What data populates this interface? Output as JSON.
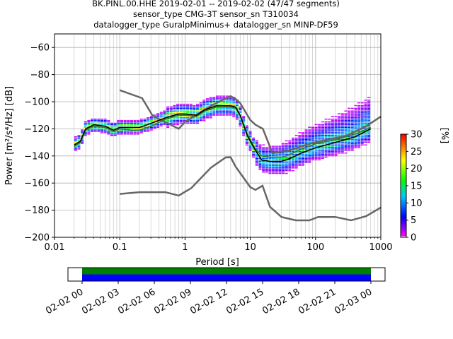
{
  "titles": {
    "line1": "BK.PINL.00.HHE   2019-02-01 -- 2019-02-02  (47/47 segments)",
    "line2": "sensor_type CMG-3T sensor_sn T310034",
    "line3": "datalogger_type GuralpMinimus+ datalogger_sn MINP-DF59"
  },
  "chart_data": [
    {
      "type": "heatmap",
      "xlabel": "Period [s]",
      "ylabel": "Power [m²/s⁴/Hz] [dB]",
      "x_scale": "log",
      "xlim": [
        0.01,
        1000
      ],
      "ylim": [
        -200,
        -50
      ],
      "x_ticks": [
        0.01,
        0.1,
        1,
        10,
        100,
        1000
      ],
      "x_tick_labels": [
        "0.01",
        "0.1",
        "1",
        "10",
        "100",
        "1000"
      ],
      "y_ticks": [
        -200,
        -180,
        -160,
        -140,
        -120,
        -100,
        -80,
        -60
      ],
      "y_tick_labels": [
        "−200",
        "−180",
        "−160",
        "−140",
        "−120",
        "−100",
        "−80",
        "−60"
      ],
      "grid": true,
      "colorbar": {
        "label": "[%]",
        "range": [
          0,
          30
        ],
        "ticks": [
          0,
          5,
          10,
          15,
          20,
          25,
          30
        ],
        "tick_labels": [
          "0",
          "5",
          "10",
          "15",
          "20",
          "25",
          "30"
        ]
      },
      "nhnm": [
        [
          0.1,
          -91.5
        ],
        [
          0.22,
          -97.4
        ],
        [
          0.32,
          -110.5
        ],
        [
          0.8,
          -120
        ],
        [
          1,
          -115
        ],
        [
          2.5,
          -103
        ],
        [
          4.5,
          -97
        ],
        [
          5,
          -96
        ],
        [
          6,
          -98
        ],
        [
          7,
          -101
        ],
        [
          10,
          -113.5
        ],
        [
          12,
          -117
        ],
        [
          15.6,
          -120
        ],
        [
          21.9,
          -138
        ],
        [
          40,
          -136
        ],
        [
          80,
          -131
        ],
        [
          150,
          -128
        ],
        [
          300,
          -125
        ],
        [
          600,
          -118
        ],
        [
          1000,
          -111
        ]
      ],
      "nlnm": [
        [
          0.1,
          -168
        ],
        [
          0.2,
          -166.7
        ],
        [
          0.5,
          -166.7
        ],
        [
          0.8,
          -169.2
        ],
        [
          1.25,
          -163.7
        ],
        [
          2.5,
          -148.6
        ],
        [
          4.2,
          -141.1
        ],
        [
          5,
          -141
        ],
        [
          6,
          -148
        ],
        [
          10,
          -163
        ],
        [
          12,
          -165
        ],
        [
          15.4,
          -162
        ],
        [
          20,
          -177.5
        ],
        [
          30,
          -185
        ],
        [
          50,
          -187.5
        ],
        [
          80,
          -187.5
        ],
        [
          110,
          -185
        ],
        [
          200,
          -185
        ],
        [
          350,
          -187.5
        ],
        [
          600,
          -184.4
        ],
        [
          1000,
          -178
        ]
      ],
      "mode": [
        [
          0.02,
          -132
        ],
        [
          0.025,
          -129
        ],
        [
          0.03,
          -120
        ],
        [
          0.04,
          -117
        ],
        [
          0.06,
          -118
        ],
        [
          0.08,
          -121
        ],
        [
          0.1,
          -119
        ],
        [
          0.15,
          -119
        ],
        [
          0.2,
          -119
        ],
        [
          0.3,
          -116
        ],
        [
          0.5,
          -112
        ],
        [
          0.8,
          -109
        ],
        [
          1,
          -109
        ],
        [
          1.5,
          -110
        ],
        [
          2,
          -106
        ],
        [
          3,
          -103
        ],
        [
          4,
          -103
        ],
        [
          5,
          -103
        ],
        [
          6,
          -104
        ],
        [
          7,
          -110
        ],
        [
          9,
          -125
        ],
        [
          12,
          -136
        ],
        [
          15,
          -143
        ],
        [
          20,
          -144
        ],
        [
          30,
          -144
        ],
        [
          40,
          -142
        ],
        [
          60,
          -138
        ],
        [
          100,
          -134
        ],
        [
          200,
          -130
        ],
        [
          400,
          -126
        ],
        [
          700,
          -120
        ]
      ],
      "mean": [
        [
          0.02,
          -133
        ],
        [
          0.025,
          -130
        ],
        [
          0.03,
          -121
        ],
        [
          0.04,
          -118
        ],
        [
          0.06,
          -119
        ],
        [
          0.08,
          -122
        ],
        [
          0.1,
          -120
        ],
        [
          0.15,
          -121
        ],
        [
          0.2,
          -121
        ],
        [
          0.3,
          -118
        ],
        [
          0.5,
          -113
        ],
        [
          0.8,
          -110
        ],
        [
          1,
          -110
        ],
        [
          1.5,
          -111
        ],
        [
          2,
          -107
        ],
        [
          3,
          -104
        ],
        [
          4,
          -104
        ],
        [
          5,
          -104
        ],
        [
          6,
          -105
        ],
        [
          7,
          -110
        ],
        [
          9,
          -124
        ],
        [
          12,
          -135
        ],
        [
          15,
          -140
        ],
        [
          20,
          -141
        ],
        [
          30,
          -141
        ],
        [
          40,
          -139
        ],
        [
          60,
          -135
        ],
        [
          100,
          -131
        ],
        [
          200,
          -128
        ],
        [
          400,
          -124
        ],
        [
          700,
          -119
        ]
      ]
    },
    {
      "type": "timeline",
      "x_tick_labels": [
        "02-02 00",
        "02-02 03",
        "02-02 06",
        "02-02 09",
        "02-02 12",
        "02-02 15",
        "02-02 18",
        "02-02 21",
        "02-03 00"
      ],
      "coverage": [
        {
          "name": "",
          "color": "#008000",
          "start_hour": 0,
          "end_hour": 24
        },
        {
          "name": "",
          "color": "#0000ff",
          "start_hour": 0,
          "end_hour": 24
        }
      ]
    }
  ]
}
